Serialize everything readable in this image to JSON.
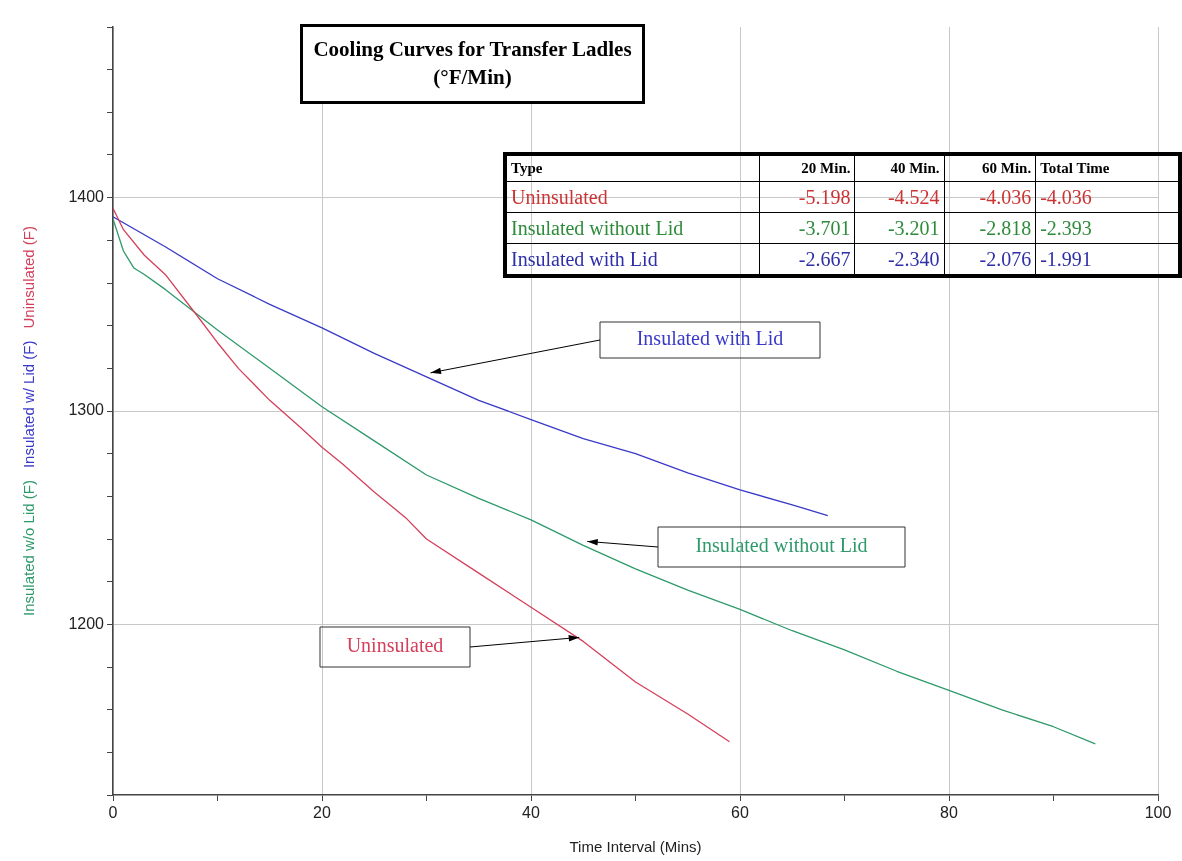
{
  "chart_data": [
    {
      "type": "line",
      "title": "Cooling Curves for Transfer Ladles",
      "subtitle": "(°F/Min)",
      "xlabel": "Time Interval (Mins)",
      "xlim": [
        0,
        100
      ],
      "xticks": [
        0,
        {
          "value": 10,
          "label": null
        },
        20,
        {
          "value": 30,
          "label": null
        },
        40,
        {
          "value": 50,
          "label": null
        },
        60,
        {
          "value": 70,
          "label": null
        },
        80,
        {
          "value": 90,
          "label": null
        },
        100
      ],
      "ylim": [
        1120,
        1480
      ],
      "yticks": [
        {
          "value": 1120,
          "label": null
        },
        {
          "value": 1140,
          "label": null
        },
        {
          "value": 1160,
          "label": null
        },
        {
          "value": 1180,
          "label": null
        },
        1200,
        {
          "value": 1220,
          "label": null
        },
        {
          "value": 1240,
          "label": null
        },
        {
          "value": 1260,
          "label": null
        },
        {
          "value": 1280,
          "label": null
        },
        1300,
        {
          "value": 1320,
          "label": null
        },
        {
          "value": 1340,
          "label": null
        },
        {
          "value": 1360,
          "label": null
        },
        {
          "value": 1380,
          "label": null
        },
        1400,
        {
          "value": 1420,
          "label": null
        },
        {
          "value": 1440,
          "label": null
        },
        {
          "value": 1460,
          "label": null
        },
        {
          "value": 1480,
          "label": null
        }
      ],
      "grid": true,
      "legend": false,
      "marker": "none",
      "line_style": "solid",
      "series": [
        {
          "name": "Uninsulated (F)",
          "color": "#d4405a",
          "x": [
            0,
            1,
            3,
            5,
            8,
            10,
            12,
            15,
            18,
            20,
            22,
            25,
            28,
            30,
            35,
            40,
            45,
            50,
            55,
            59
          ],
          "values": [
            1395,
            1385,
            1373,
            1364,
            1345,
            1332,
            1320,
            1305,
            1292,
            1283,
            1275,
            1262,
            1250,
            1240,
            1224,
            1208,
            1192,
            1173,
            1158,
            1145
          ]
        },
        {
          "name": "Insulated w/ Lid (F)",
          "color": "#3a3ac8",
          "x": [
            0,
            5,
            10,
            15,
            20,
            25,
            30,
            35,
            40,
            45,
            50,
            55,
            60,
            65,
            68.4
          ],
          "values": [
            1391,
            1377,
            1362,
            1350,
            1339,
            1327,
            1316,
            1305,
            1296,
            1287,
            1280,
            1271,
            1263,
            1256,
            1251
          ]
        },
        {
          "name": "Insulated w/o Lid (F)",
          "color": "#2e9a6a",
          "x": [
            0,
            1,
            2,
            3,
            5,
            10,
            15,
            20,
            25,
            30,
            35,
            40,
            45,
            50,
            55,
            60,
            65,
            70,
            75,
            80,
            85,
            90,
            94
          ],
          "values": [
            1390,
            1375,
            1367,
            1364,
            1357,
            1338,
            1320,
            1302,
            1286,
            1270,
            1259,
            1249,
            1237,
            1226,
            1216,
            1207,
            1197,
            1188,
            1178,
            1169,
            1160,
            1152,
            1144
          ]
        }
      ],
      "annotations": [
        "Uninsulated",
        "Insulated with Lid",
        "Insulated without Lid"
      ]
    },
    {
      "type": "other",
      "ylabel": "Type",
      "categories": [
        "20 Min.",
        "40 Min.",
        "60 Min.",
        "Total Time"
      ],
      "data_labels": true,
      "series": [
        {
          "name": "Uninsulated",
          "color": "#cc3333",
          "values": [
            -5.198,
            -4.524,
            -4.036,
            -4.036
          ],
          "value_labels": [
            "-5.198",
            "-4.524",
            "-4.036",
            "-4.036"
          ]
        },
        {
          "name": "Insulated without Lid",
          "color": "#2e8b3a",
          "values": [
            -3.701,
            -3.201,
            -2.818,
            -2.393
          ],
          "value_labels": [
            "-3.701",
            "-3.201",
            "-2.818",
            "-2.393"
          ]
        },
        {
          "name": "Insulated with Lid",
          "color": "#2f2fa8",
          "values": [
            -2.667,
            -2.34,
            -2.076,
            -1.991
          ],
          "value_labels": [
            "-2.667",
            "-2.340",
            "-2.076",
            "-1.991"
          ]
        }
      ]
    }
  ]
}
